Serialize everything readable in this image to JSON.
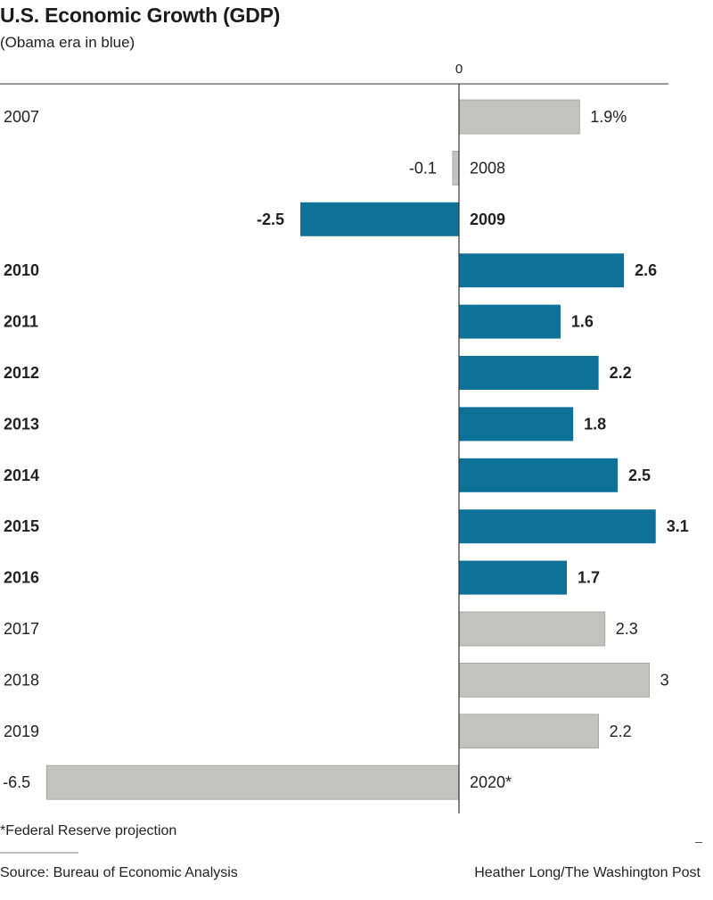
{
  "title": "U.S. Economic Growth (GDP)",
  "subtitle": "(Obama era in blue)",
  "footnote": "*Federal Reserve projection",
  "source": "Source: Bureau of Economic Analysis",
  "credit": "Heather Long/The Washington Post",
  "colors": {
    "obama": "#0e7197",
    "other": "#c2c3c0",
    "axis": "#333333",
    "text": "#222222"
  },
  "chart_data": {
    "type": "bar",
    "orientation": "horizontal",
    "zero_label": "0",
    "categories": [
      "2007",
      "2008",
      "2009",
      "2010",
      "2011",
      "2012",
      "2013",
      "2014",
      "2015",
      "2016",
      "2017",
      "2018",
      "2019",
      "2020*"
    ],
    "values": [
      1.9,
      -0.1,
      -2.5,
      2.6,
      1.6,
      2.2,
      1.8,
      2.5,
      3.1,
      1.7,
      2.3,
      3,
      2.2,
      -6.5
    ],
    "value_labels": [
      "1.9%",
      "-0.1",
      "-2.5",
      "2.6",
      "1.6",
      "2.2",
      "1.8",
      "2.5",
      "3.1",
      "1.7",
      "2.3",
      "3",
      "2.2",
      "-6.5"
    ],
    "highlighted": [
      false,
      false,
      true,
      true,
      true,
      true,
      true,
      true,
      true,
      true,
      false,
      false,
      false,
      false
    ],
    "grid": false
  }
}
